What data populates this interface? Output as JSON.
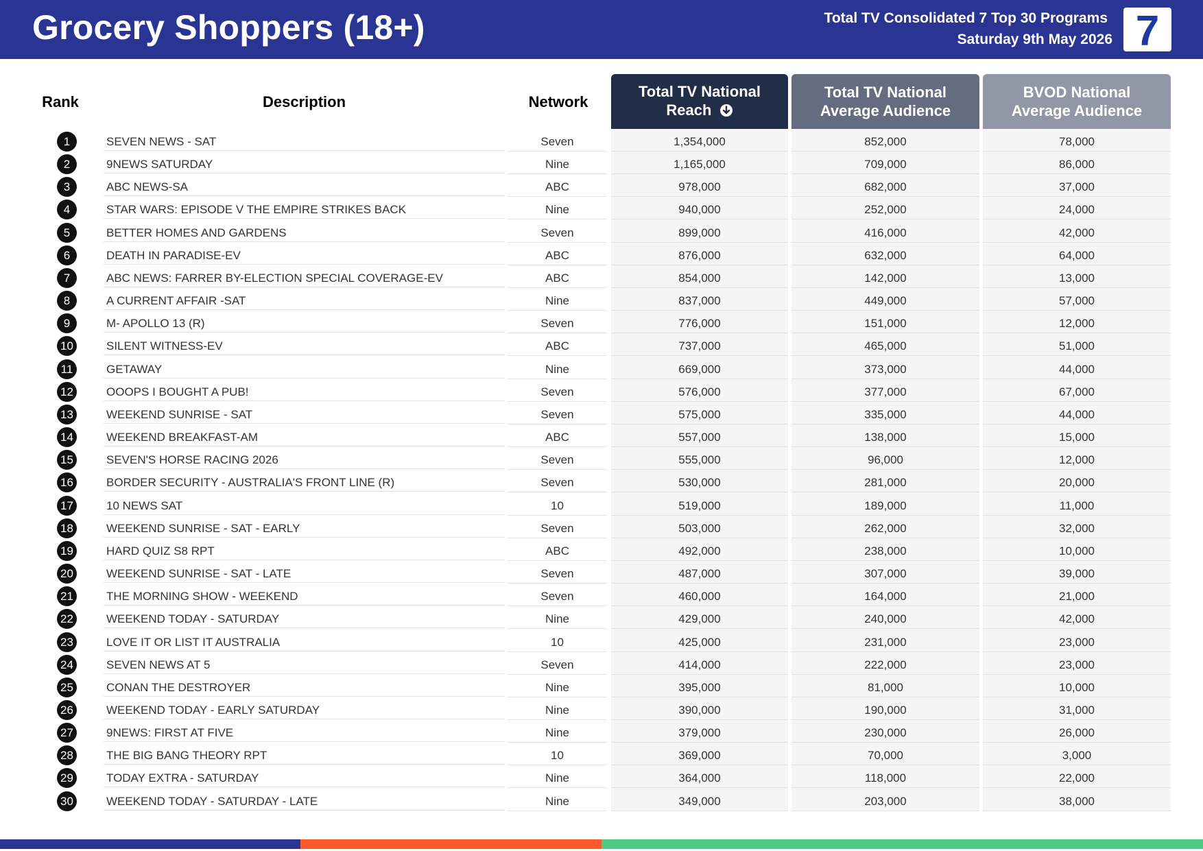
{
  "header": {
    "title": "Grocery Shoppers (18+)",
    "subtitle_line1": "Total TV Consolidated 7 Top 30 Programs",
    "subtitle_line2": "Saturday 9th May 2026",
    "logo_text": "7",
    "bar_color": "#2a3593"
  },
  "columns": {
    "rank": "Rank",
    "description": "Description",
    "network": "Network",
    "reach_line1": "Total TV National",
    "reach_line2": "Reach",
    "tv_line1": "Total TV National",
    "tv_line2": "Average Audience",
    "bvod_line1": "BVOD National",
    "bvod_line2": "Average Audience",
    "sort_icon": "arrow-down-circle-icon"
  },
  "rows": [
    {
      "rank": "1",
      "description": "SEVEN NEWS - SAT",
      "network": "Seven",
      "reach": "1,354,000",
      "tv_avg": "852,000",
      "bvod_avg": "78,000"
    },
    {
      "rank": "2",
      "description": "9NEWS SATURDAY",
      "network": "Nine",
      "reach": "1,165,000",
      "tv_avg": "709,000",
      "bvod_avg": "86,000"
    },
    {
      "rank": "3",
      "description": "ABC NEWS-SA",
      "network": "ABC",
      "reach": "978,000",
      "tv_avg": "682,000",
      "bvod_avg": "37,000"
    },
    {
      "rank": "4",
      "description": "STAR WARS: EPISODE V THE EMPIRE STRIKES BACK",
      "network": "Nine",
      "reach": "940,000",
      "tv_avg": "252,000",
      "bvod_avg": "24,000"
    },
    {
      "rank": "5",
      "description": "BETTER HOMES AND GARDENS",
      "network": "Seven",
      "reach": "899,000",
      "tv_avg": "416,000",
      "bvod_avg": "42,000"
    },
    {
      "rank": "6",
      "description": "DEATH IN PARADISE-EV",
      "network": "ABC",
      "reach": "876,000",
      "tv_avg": "632,000",
      "bvod_avg": "64,000"
    },
    {
      "rank": "7",
      "description": "ABC NEWS: FARRER BY-ELECTION SPECIAL COVERAGE-EV",
      "network": "ABC",
      "reach": "854,000",
      "tv_avg": "142,000",
      "bvod_avg": "13,000"
    },
    {
      "rank": "8",
      "description": "A CURRENT AFFAIR -SAT",
      "network": "Nine",
      "reach": "837,000",
      "tv_avg": "449,000",
      "bvod_avg": "57,000"
    },
    {
      "rank": "9",
      "description": "M- APOLLO 13 (R)",
      "network": "Seven",
      "reach": "776,000",
      "tv_avg": "151,000",
      "bvod_avg": "12,000"
    },
    {
      "rank": "10",
      "description": "SILENT WITNESS-EV",
      "network": "ABC",
      "reach": "737,000",
      "tv_avg": "465,000",
      "bvod_avg": "51,000"
    },
    {
      "rank": "11",
      "description": "GETAWAY",
      "network": "Nine",
      "reach": "669,000",
      "tv_avg": "373,000",
      "bvod_avg": "44,000"
    },
    {
      "rank": "12",
      "description": "OOOPS I BOUGHT A PUB!",
      "network": "Seven",
      "reach": "576,000",
      "tv_avg": "377,000",
      "bvod_avg": "67,000"
    },
    {
      "rank": "13",
      "description": "WEEKEND SUNRISE - SAT",
      "network": "Seven",
      "reach": "575,000",
      "tv_avg": "335,000",
      "bvod_avg": "44,000"
    },
    {
      "rank": "14",
      "description": "WEEKEND BREAKFAST-AM",
      "network": "ABC",
      "reach": "557,000",
      "tv_avg": "138,000",
      "bvod_avg": "15,000"
    },
    {
      "rank": "15",
      "description": "SEVEN'S HORSE RACING 2026",
      "network": "Seven",
      "reach": "555,000",
      "tv_avg": "96,000",
      "bvod_avg": "12,000"
    },
    {
      "rank": "16",
      "description": "BORDER SECURITY - AUSTRALIA'S FRONT LINE (R)",
      "network": "Seven",
      "reach": "530,000",
      "tv_avg": "281,000",
      "bvod_avg": "20,000"
    },
    {
      "rank": "17",
      "description": "10 NEWS SAT",
      "network": "10",
      "reach": "519,000",
      "tv_avg": "189,000",
      "bvod_avg": "11,000"
    },
    {
      "rank": "18",
      "description": "WEEKEND SUNRISE - SAT - EARLY",
      "network": "Seven",
      "reach": "503,000",
      "tv_avg": "262,000",
      "bvod_avg": "32,000"
    },
    {
      "rank": "19",
      "description": "HARD QUIZ S8 RPT",
      "network": "ABC",
      "reach": "492,000",
      "tv_avg": "238,000",
      "bvod_avg": "10,000"
    },
    {
      "rank": "20",
      "description": "WEEKEND SUNRISE - SAT - LATE",
      "network": "Seven",
      "reach": "487,000",
      "tv_avg": "307,000",
      "bvod_avg": "39,000"
    },
    {
      "rank": "21",
      "description": "THE MORNING SHOW - WEEKEND",
      "network": "Seven",
      "reach": "460,000",
      "tv_avg": "164,000",
      "bvod_avg": "21,000"
    },
    {
      "rank": "22",
      "description": "WEEKEND TODAY - SATURDAY",
      "network": "Nine",
      "reach": "429,000",
      "tv_avg": "240,000",
      "bvod_avg": "42,000"
    },
    {
      "rank": "23",
      "description": "LOVE IT OR LIST IT AUSTRALIA",
      "network": "10",
      "reach": "425,000",
      "tv_avg": "231,000",
      "bvod_avg": "23,000"
    },
    {
      "rank": "24",
      "description": "SEVEN NEWS AT 5",
      "network": "Seven",
      "reach": "414,000",
      "tv_avg": "222,000",
      "bvod_avg": "23,000"
    },
    {
      "rank": "25",
      "description": "CONAN THE DESTROYER",
      "network": "Nine",
      "reach": "395,000",
      "tv_avg": "81,000",
      "bvod_avg": "10,000"
    },
    {
      "rank": "26",
      "description": "WEEKEND TODAY - EARLY SATURDAY",
      "network": "Nine",
      "reach": "390,000",
      "tv_avg": "190,000",
      "bvod_avg": "31,000"
    },
    {
      "rank": "27",
      "description": "9NEWS: FIRST AT FIVE",
      "network": "Nine",
      "reach": "379,000",
      "tv_avg": "230,000",
      "bvod_avg": "26,000"
    },
    {
      "rank": "28",
      "description": "THE BIG BANG THEORY RPT",
      "network": "10",
      "reach": "369,000",
      "tv_avg": "70,000",
      "bvod_avg": "3,000"
    },
    {
      "rank": "29",
      "description": "TODAY EXTRA - SATURDAY",
      "network": "Nine",
      "reach": "364,000",
      "tv_avg": "118,000",
      "bvod_avg": "22,000"
    },
    {
      "rank": "30",
      "description": "WEEKEND TODAY - SATURDAY - LATE",
      "network": "Nine",
      "reach": "349,000",
      "tv_avg": "203,000",
      "bvod_avg": "38,000"
    }
  ],
  "footer": {
    "stripe_colors": [
      "#2a3593",
      "#ff5a2c",
      "#4ccb82"
    ]
  }
}
